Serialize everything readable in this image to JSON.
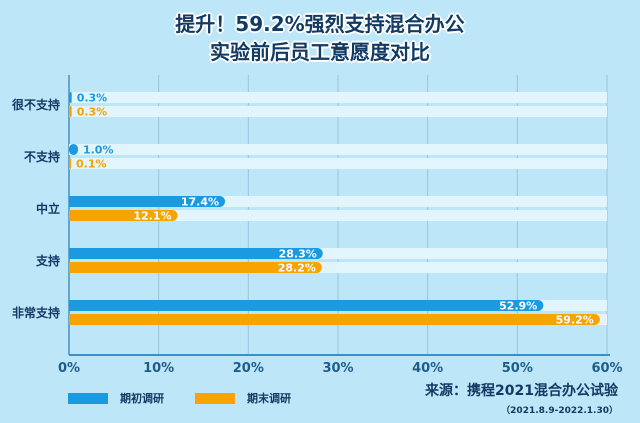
{
  "title_line1": "提升！59.2%强烈支持混合办公",
  "title_line2": "实验前后员工意愿度对比",
  "chart_data": {
    "type": "bar",
    "orientation": "horizontal",
    "categories": [
      "很不支持",
      "不支持",
      "中立",
      "支持",
      "非常支持"
    ],
    "series": [
      {
        "name": "期初调研",
        "values": [
          0.3,
          1.0,
          17.4,
          28.3,
          52.9
        ],
        "color": "#1a9ae0"
      },
      {
        "name": "期末调研",
        "values": [
          0.3,
          0.1,
          12.1,
          28.2,
          59.2
        ],
        "color": "#f7a300"
      }
    ],
    "data_labels": [
      [
        "0.3%",
        "1.0%",
        "17.4%",
        "28.3%",
        "52.9%"
      ],
      [
        "0.3%",
        "0.1%",
        "12.1%",
        "28.2%",
        "59.2%"
      ]
    ],
    "xlim": [
      0,
      60
    ],
    "xticks": [
      "0%",
      "10%",
      "20%",
      "30%",
      "40%",
      "50%",
      "60%"
    ],
    "grid": true,
    "legend_placement": "bottom-left"
  },
  "source": "来源：携程2021混合办公试验",
  "source_date": "（2021.8.9-2022.1.30）"
}
